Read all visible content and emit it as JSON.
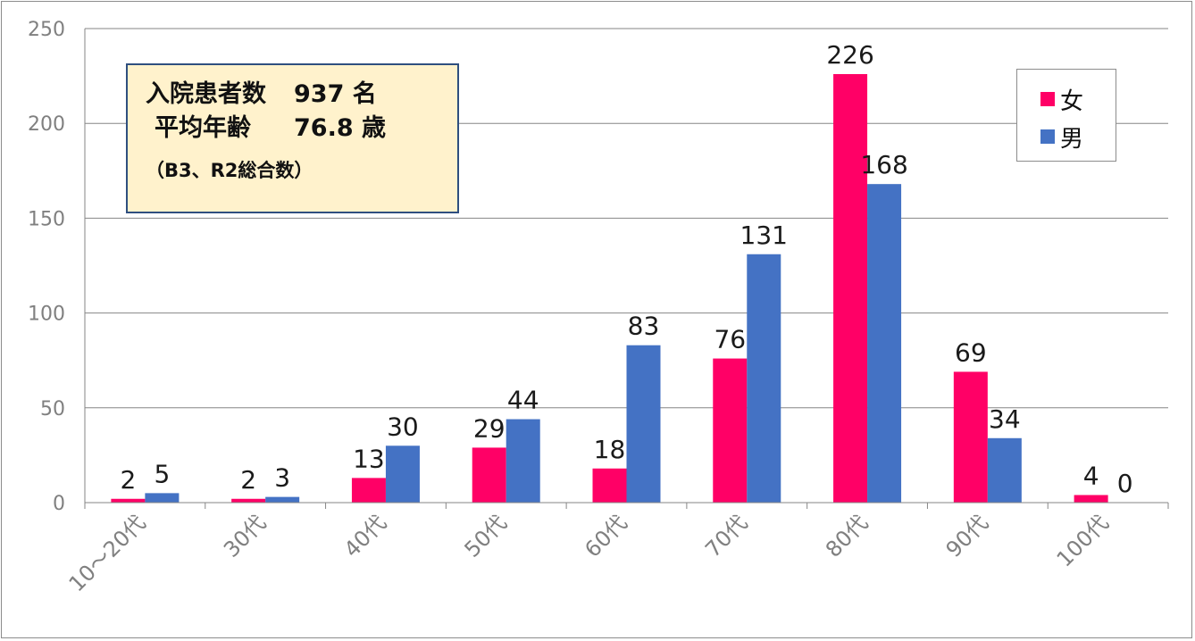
{
  "info_box": {
    "line1_label": "入院患者数",
    "line1_value": "937 名",
    "line2_label": "平均年齢",
    "line2_value": "76.8 歳",
    "note": "（B3、R2総合数）",
    "background": "#fff2cc",
    "border": "#2f4f7f"
  },
  "chart_data": {
    "type": "bar",
    "categories": [
      "10～20代",
      "30代",
      "40代",
      "50代",
      "60代",
      "70代",
      "80代",
      "90代",
      "100代"
    ],
    "series": [
      {
        "name": "女",
        "color": "#ff0066",
        "values": [
          2,
          2,
          13,
          29,
          18,
          76,
          226,
          69,
          4
        ]
      },
      {
        "name": "男",
        "color": "#4472c4",
        "values": [
          5,
          3,
          30,
          44,
          83,
          131,
          168,
          34,
          0
        ]
      }
    ],
    "ylim": [
      0,
      250
    ],
    "yticks": [
      0,
      50,
      100,
      150,
      200,
      250
    ],
    "grid": true,
    "legend": "top-right",
    "data_labels": true
  }
}
